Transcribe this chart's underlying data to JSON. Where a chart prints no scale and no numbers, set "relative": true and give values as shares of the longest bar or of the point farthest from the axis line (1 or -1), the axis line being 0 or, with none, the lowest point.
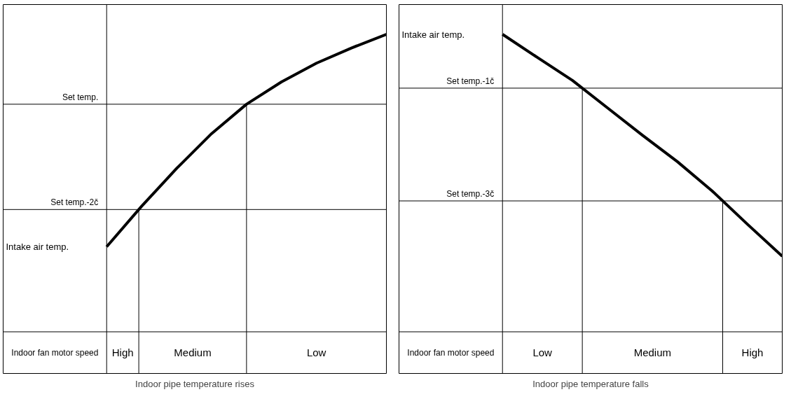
{
  "chart_data": [
    {
      "type": "line",
      "relative": true,
      "xlabel": "Indoor pipe temperature rises",
      "categories": [
        null,
        null,
        null,
        null,
        null,
        null,
        null,
        null,
        null
      ],
      "series": [
        {
          "color": "#000000",
          "values": [
            0.286,
            0.422,
            0.549,
            0.666,
            0.765,
            0.84,
            0.903,
            0.954,
            1
          ]
        }
      ],
      "ref_lines": [
        {
          "axis": "y",
          "value": 0.765,
          "label": "Set temp."
        },
        {
          "axis": "y",
          "value": 0.411,
          "label": "Set temp.-2č"
        }
      ],
      "annotations": [
        "Indoor fan motor speed",
        "Intake air temp.",
        "High",
        "Medium",
        "Low"
      ],
      "grid": false
    },
    {
      "type": "line",
      "relative": true,
      "xlabel": "Indoor pipe temperature falls",
      "categories": [
        null,
        null,
        null,
        null,
        null,
        null,
        null,
        null,
        null
      ],
      "series": [
        {
          "color": "#000000",
          "values": [
            1,
            0.922,
            0.845,
            0.753,
            0.661,
            0.572,
            0.473,
            0.362,
            0.254
          ]
        }
      ],
      "ref_lines": [
        {
          "axis": "y",
          "value": 0.819,
          "label": "Set temp.-1č"
        },
        {
          "axis": "y",
          "value": 0.44,
          "label": "Set temp.-3č"
        }
      ],
      "annotations": [
        "Indoor fan motor speed",
        "Intake air temp.",
        "Low",
        "Medium",
        "High"
      ],
      "grid": false
    }
  ]
}
